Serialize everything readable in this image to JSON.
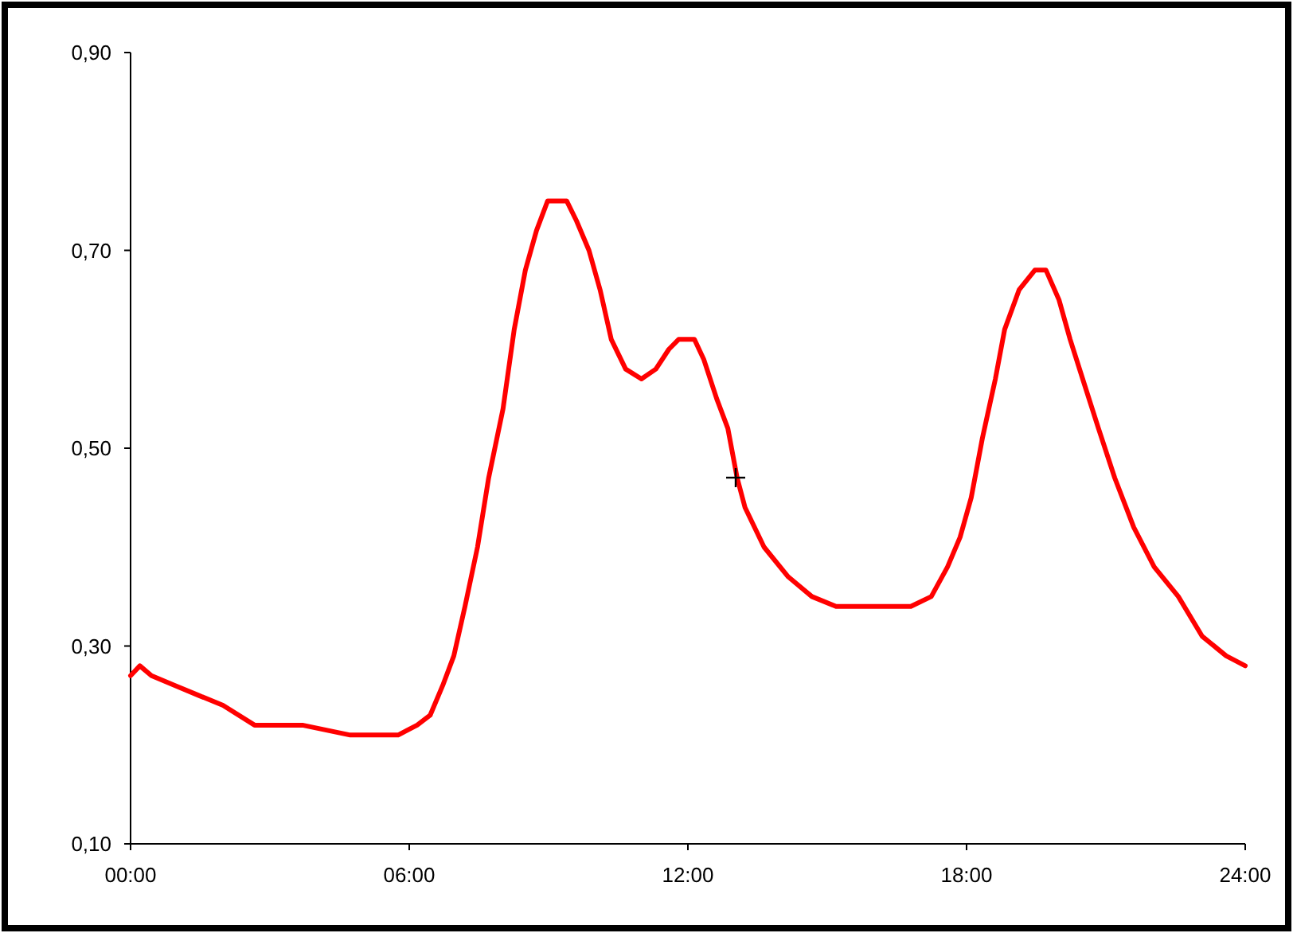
{
  "chart_data": {
    "type": "line",
    "x": [
      0,
      0.2,
      0.45,
      0.96,
      1.47,
      1.99,
      2.67,
      3.7,
      4.73,
      5.25,
      5.76,
      6.17,
      6.45,
      6.72,
      6.96,
      7.2,
      7.47,
      7.71,
      8.02,
      8.26,
      8.5,
      8.74,
      8.98,
      9.39,
      9.6,
      9.87,
      10.11,
      10.35,
      10.66,
      11.0,
      11.31,
      11.59,
      11.8,
      12.14,
      12.34,
      12.62,
      12.86,
      13.06,
      13.23,
      13.64,
      14.16,
      14.67,
      15.19,
      16.04,
      16.8,
      17.24,
      17.59,
      17.86,
      18.1,
      18.34,
      18.62,
      18.82,
      19.13,
      19.47,
      19.71,
      19.99,
      20.23,
      20.5,
      20.84,
      21.19,
      21.6,
      22.04,
      22.56,
      23.07,
      23.59,
      24.0
    ],
    "series": [
      {
        "color": "#ff0000",
        "values": [
          0.27,
          0.28,
          0.27,
          0.26,
          0.25,
          0.24,
          0.22,
          0.22,
          0.21,
          0.21,
          0.21,
          0.22,
          0.23,
          0.26,
          0.29,
          0.34,
          0.4,
          0.47,
          0.54,
          0.62,
          0.68,
          0.72,
          0.75,
          0.75,
          0.73,
          0.7,
          0.66,
          0.61,
          0.58,
          0.57,
          0.58,
          0.6,
          0.61,
          0.61,
          0.59,
          0.55,
          0.52,
          0.47,
          0.44,
          0.4,
          0.37,
          0.35,
          0.34,
          0.34,
          0.34,
          0.35,
          0.38,
          0.41,
          0.45,
          0.51,
          0.57,
          0.62,
          0.66,
          0.68,
          0.68,
          0.65,
          0.61,
          0.57,
          0.52,
          0.47,
          0.42,
          0.38,
          0.35,
          0.31,
          0.29,
          0.28
        ]
      }
    ],
    "xlim": [
      0,
      24
    ],
    "xticks": [
      {
        "value": 0,
        "label": "00:00"
      },
      {
        "value": 6,
        "label": "06:00"
      },
      {
        "value": 12,
        "label": "12:00"
      },
      {
        "value": 18,
        "label": "18:00"
      },
      {
        "value": 24,
        "label": "24:00"
      }
    ],
    "ylim": [
      0.1,
      0.9
    ],
    "yticks": [
      {
        "value": 0.1,
        "label": "0,10"
      },
      {
        "value": 0.3,
        "label": "0,30"
      },
      {
        "value": 0.5,
        "label": "0,50"
      },
      {
        "value": 0.7,
        "label": "0,70"
      },
      {
        "value": 0.9,
        "label": "0,90"
      }
    ],
    "marker": "none",
    "line_style": "solid"
  }
}
